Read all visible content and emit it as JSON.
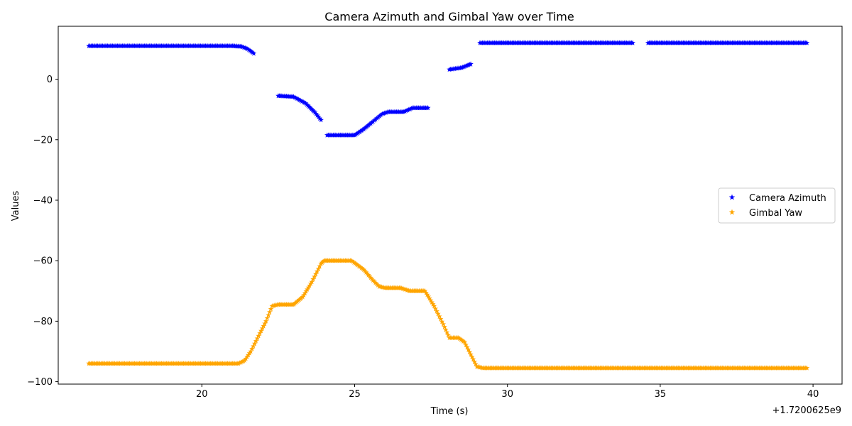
{
  "chart_data": {
    "type": "scatter",
    "title": "Camera Azimuth and Gimbal Yaw over Time",
    "xlabel": "Time (s)",
    "ylabel": "Values",
    "x_offset_label": "+1.7200625e9",
    "xlim": [
      15.3,
      40.95
    ],
    "ylim": [
      -100.8,
      17.5
    ],
    "x_ticks": [
      20,
      25,
      30,
      35,
      40
    ],
    "y_ticks": [
      0,
      -20,
      -40,
      -60,
      -80,
      -100
    ],
    "grid": false,
    "legend_position": "center-right",
    "marker": "star",
    "series": [
      {
        "name": "Camera Azimuth",
        "color": "#0000ff",
        "points": [
          [
            16.3,
            11
          ],
          [
            17.0,
            11
          ],
          [
            18.0,
            11
          ],
          [
            19.0,
            11
          ],
          [
            20.0,
            11
          ],
          [
            21.0,
            11
          ],
          [
            21.3,
            10.8
          ],
          [
            21.5,
            10
          ],
          [
            21.7,
            8.5
          ],
          [
            22.5,
            -5.5
          ],
          [
            23.0,
            -5.8
          ],
          [
            23.4,
            -8
          ],
          [
            23.7,
            -11
          ],
          [
            23.9,
            -13.5
          ],
          [
            24.1,
            -18.5
          ],
          [
            24.5,
            -18.5
          ],
          [
            25.0,
            -18.5
          ],
          [
            25.3,
            -16.5
          ],
          [
            25.6,
            -14
          ],
          [
            25.9,
            -11.5
          ],
          [
            26.1,
            -10.8
          ],
          [
            26.6,
            -10.8
          ],
          [
            26.9,
            -9.5
          ],
          [
            27.4,
            -9.5
          ],
          [
            28.1,
            3.2
          ],
          [
            28.5,
            3.8
          ],
          [
            28.8,
            5
          ],
          [
            29.1,
            12
          ],
          [
            29.5,
            12
          ],
          [
            30.0,
            12
          ],
          [
            31.0,
            12
          ],
          [
            32.0,
            12
          ],
          [
            33.0,
            12
          ],
          [
            34.1,
            12
          ],
          [
            34.6,
            12
          ],
          [
            35.0,
            12
          ],
          [
            36.0,
            12
          ],
          [
            37.0,
            12
          ],
          [
            38.0,
            12
          ],
          [
            39.0,
            12
          ],
          [
            39.8,
            12
          ]
        ],
        "gaps_after_x": [
          21.7,
          23.9,
          27.4,
          28.8,
          34.1
        ]
      },
      {
        "name": "Gimbal Yaw",
        "color": "#ffa500",
        "points": [
          [
            16.3,
            -94
          ],
          [
            18.0,
            -94
          ],
          [
            20.0,
            -94
          ],
          [
            21.2,
            -94
          ],
          [
            21.4,
            -93
          ],
          [
            21.6,
            -90
          ],
          [
            21.9,
            -84
          ],
          [
            22.1,
            -80
          ],
          [
            22.3,
            -75
          ],
          [
            22.5,
            -74.5
          ],
          [
            23.0,
            -74.5
          ],
          [
            23.3,
            -72
          ],
          [
            23.6,
            -67
          ],
          [
            23.9,
            -61
          ],
          [
            24.0,
            -60
          ],
          [
            24.5,
            -60
          ],
          [
            24.9,
            -60
          ],
          [
            25.3,
            -63
          ],
          [
            25.6,
            -66.5
          ],
          [
            25.8,
            -68.5
          ],
          [
            26.0,
            -69
          ],
          [
            26.5,
            -69
          ],
          [
            26.8,
            -70
          ],
          [
            27.3,
            -70
          ],
          [
            27.6,
            -75
          ],
          [
            27.9,
            -81
          ],
          [
            28.1,
            -85.5
          ],
          [
            28.4,
            -85.5
          ],
          [
            28.6,
            -87
          ],
          [
            28.8,
            -91
          ],
          [
            29.0,
            -95
          ],
          [
            29.2,
            -95.5
          ],
          [
            30.0,
            -95.5
          ],
          [
            32.0,
            -95.5
          ],
          [
            34.0,
            -95.5
          ],
          [
            36.0,
            -95.5
          ],
          [
            38.0,
            -95.5
          ],
          [
            39.8,
            -95.5
          ]
        ]
      }
    ]
  }
}
